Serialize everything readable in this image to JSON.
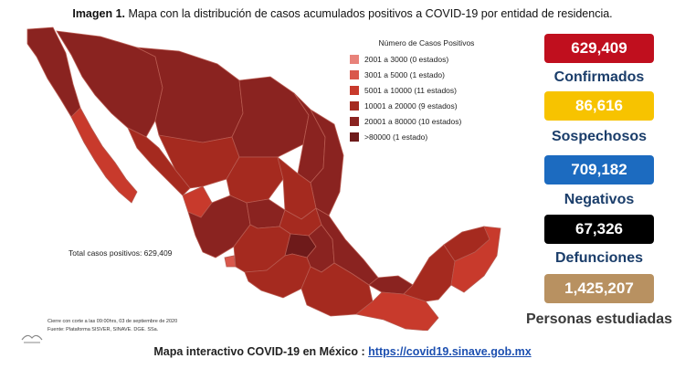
{
  "caption": {
    "prefix": "Imagen 1.",
    "text": "Mapa con la distribución de casos acumulados positivos a COVID-19 por entidad de residencia."
  },
  "legend": {
    "title": "Número de Casos Positivos",
    "items": [
      {
        "label": "2001 a    3000   (0 estados)",
        "color": "#e8827a"
      },
      {
        "label": "3001 a    5000   (1 estado)",
        "color": "#d9584c"
      },
      {
        "label": "5001 a 10000   (11 estados)",
        "color": "#c83a2c"
      },
      {
        "label": "10001 a 20000   (9 estados)",
        "color": "#a52a1f"
      },
      {
        "label": "20001 a 80000   (10 estados)",
        "color": "#8a2320"
      },
      {
        "label": ">80000          (1 estado)",
        "color": "#6e1a1a"
      }
    ]
  },
  "map": {
    "total_label": "Total casos positivos: 629,409"
  },
  "source": {
    "line1": "Cierre con corte a las 09:00hrs, 03 de septiembre de 2020",
    "line2": "Fuente: Plataforma SISVER, SINAVE. DGE. SSa."
  },
  "stats": [
    {
      "value": "629,409",
      "label": "Confirmados",
      "color": "#c00f1e"
    },
    {
      "value": "86,616",
      "label": "Sospechosos",
      "color": "#f7c300"
    },
    {
      "value": "709,182",
      "label": "Negativos",
      "color": "#1c6bc0"
    },
    {
      "value": "67,326",
      "label": "Defunciones",
      "color": "#000000"
    },
    {
      "value": "1,425,207",
      "label": "Personas estudiadas",
      "color": "#b89161"
    }
  ],
  "footer": {
    "text": "Mapa interactivo COVID-19 en México :",
    "link": "https://covid19.sinave.gob.mx"
  }
}
